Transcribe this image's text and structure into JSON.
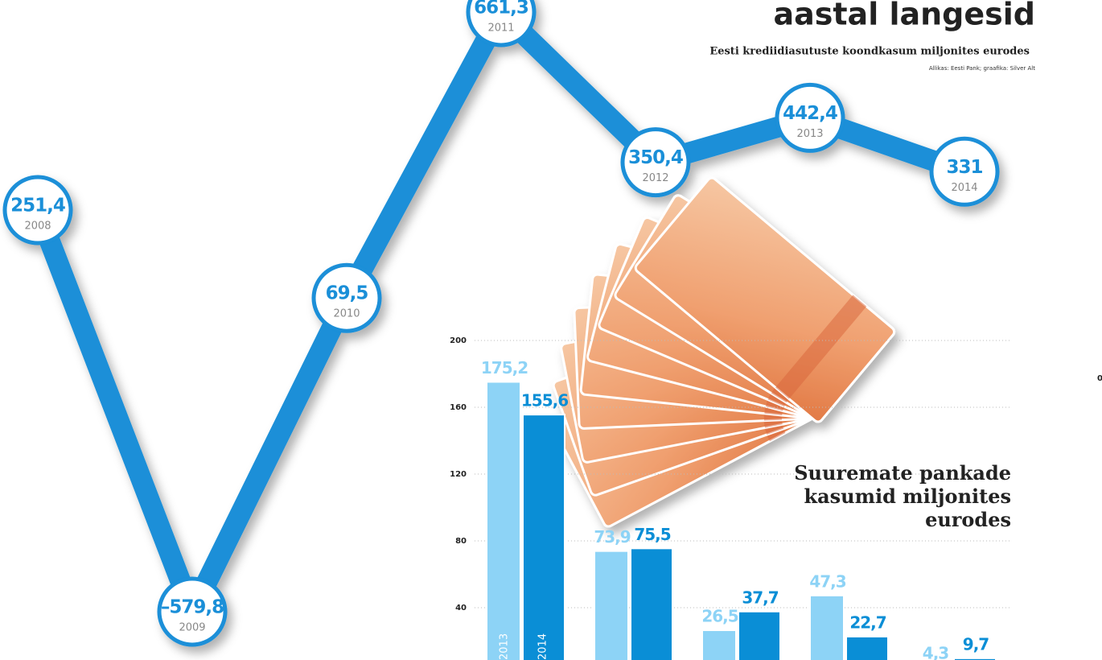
{
  "charts_title": "aastal langesid",
  "edge_text": "0",
  "chart_data": [
    {
      "type": "line",
      "subtitle": "Eesti krediidiasutuste koondkasum miljonites eurodes",
      "source": "Allikas: Eesti Pank; graafika: Silver Alt",
      "categories": [
        "2008",
        "2009",
        "2010",
        "2011",
        "2012",
        "2013",
        "2014"
      ],
      "values": [
        251.4,
        -579.8,
        69.5,
        661.3,
        350.4,
        442.4,
        331
      ],
      "value_labels": [
        "251,4",
        "–579,8",
        "69,5",
        "661,3",
        "350,4",
        "442,4",
        "331"
      ],
      "color": "#1a8fd8"
    },
    {
      "type": "bar",
      "title": "Suuremate pankade kasumid miljonites eurodes",
      "categories": [
        null,
        null,
        null,
        null,
        null
      ],
      "series": [
        {
          "name": "2013",
          "color": "#8dd3f6",
          "values": [
            175.2,
            73.9,
            26.5,
            47.3,
            4.3
          ],
          "value_labels": [
            "175,2",
            "73,9",
            "26,5",
            "47,3",
            "4,3"
          ]
        },
        {
          "name": "2014",
          "color": "#0a8ed6",
          "values": [
            155.6,
            75.5,
            37.7,
            22.7,
            9.7
          ],
          "value_labels": [
            "155,6",
            "75,5",
            "37,7",
            "22,7",
            "9,7"
          ]
        }
      ],
      "ylim": [
        0,
        200
      ],
      "yticks": [
        40,
        80,
        120,
        160,
        200
      ],
      "grid": true
    }
  ]
}
